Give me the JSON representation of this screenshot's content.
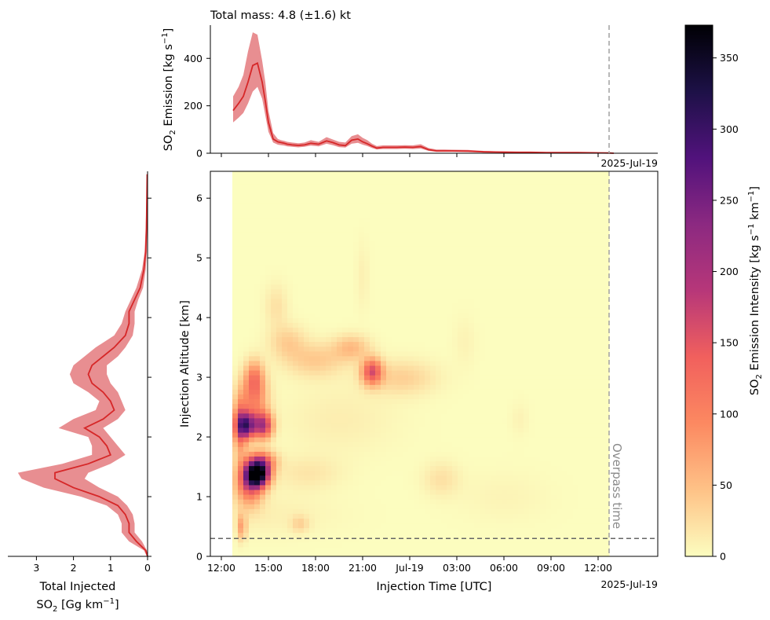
{
  "chart_data": [
    {
      "id": "top_emission",
      "type": "line",
      "title": "Total mass: 4.8 (±1.6) kt",
      "ylabel_main": "SO",
      "ylabel_sub": "2",
      "ylabel_rest": " Emission [kg s",
      "ylabel_sup": "−1",
      "ylabel_end": "]",
      "date_label": "2025-Jul-19",
      "ylim": [
        0,
        540
      ],
      "yticks": [
        "0",
        "200",
        "400"
      ],
      "ytick_values": [
        0,
        200,
        400
      ],
      "line_color": "#d62728",
      "band_color": "#e88e91",
      "x_hours": [
        0.05,
        0.4,
        0.7,
        1.0,
        1.3,
        1.6,
        1.9,
        2.1,
        2.3,
        2.6,
        2.9,
        3.1,
        3.3,
        3.5,
        3.8,
        4.2,
        4.6,
        5.0,
        5.5,
        6.0,
        6.4,
        6.8,
        7.2,
        7.6,
        8.0,
        8.3,
        8.6,
        8.9,
        9.2,
        9.6,
        10.0,
        10.5,
        11.0,
        11.5,
        12.0,
        12.5,
        13.0,
        13.5,
        14.0,
        15.0,
        16.0,
        17.0,
        18.0,
        19.0,
        20.0,
        21.0,
        22.0,
        23.0,
        24.0,
        24.3
      ],
      "values": [
        180,
        210,
        240,
        300,
        370,
        380,
        300,
        220,
        130,
        60,
        48,
        45,
        42,
        38,
        35,
        33,
        35,
        42,
        38,
        52,
        45,
        35,
        32,
        55,
        60,
        48,
        40,
        30,
        22,
        25,
        25,
        25,
        26,
        25,
        28,
        15,
        10,
        10,
        10,
        9,
        6,
        5,
        4,
        4,
        3,
        3,
        3,
        2,
        1,
        0
      ],
      "upper": [
        240,
        280,
        330,
        430,
        510,
        500,
        390,
        300,
        180,
        85,
        60,
        55,
        52,
        48,
        45,
        42,
        45,
        55,
        48,
        68,
        58,
        48,
        45,
        72,
        80,
        65,
        55,
        40,
        30,
        33,
        33,
        33,
        34,
        33,
        38,
        22,
        16,
        16,
        15,
        14,
        10,
        8,
        7,
        6,
        5,
        5,
        4,
        3,
        2,
        0
      ],
      "lower": [
        130,
        150,
        170,
        210,
        260,
        280,
        230,
        160,
        90,
        45,
        36,
        34,
        32,
        29,
        27,
        25,
        27,
        32,
        29,
        40,
        34,
        26,
        24,
        40,
        44,
        36,
        30,
        22,
        16,
        18,
        18,
        18,
        19,
        18,
        20,
        10,
        6,
        6,
        6,
        5,
        3,
        2,
        2,
        2,
        1,
        1,
        1,
        1,
        0,
        0
      ]
    },
    {
      "id": "main_heatmap",
      "type": "heatmap",
      "xlabel": "Injection Time [UTC]",
      "ylabel": "Injection Altitude [km]",
      "date_label": "2025-Jul-19",
      "x_ticks": [
        "12:00",
        "15:00",
        "18:00",
        "21:00",
        "Jul-19",
        "03:00",
        "06:00",
        "09:00",
        "12:00"
      ],
      "x_tick_hours": [
        0,
        3,
        6,
        9,
        12,
        15,
        18,
        21,
        24
      ],
      "xlim_hours": [
        -0.7,
        27.8
      ],
      "data_start_hour": 0.7,
      "overpass_hour": 24.7,
      "overpass_label": "Overpass time",
      "y_ticks": [
        "0",
        "1",
        "2",
        "3",
        "4",
        "5",
        "6"
      ],
      "y_tick_values": [
        0,
        1,
        2,
        3,
        4,
        5,
        6
      ],
      "ylim_km": [
        0,
        6.45
      ],
      "reference_altitude_km": 0.3,
      "blobs": [
        {
          "t": 2.3,
          "z": 1.38,
          "st": 0.5,
          "sz": 0.14,
          "a": 370
        },
        {
          "t": 1.8,
          "z": 1.25,
          "st": 0.6,
          "sz": 0.25,
          "a": 150
        },
        {
          "t": 2.6,
          "z": 1.6,
          "st": 0.6,
          "sz": 0.12,
          "a": 120
        },
        {
          "t": 1.6,
          "z": 2.2,
          "st": 0.45,
          "sz": 0.15,
          "a": 240
        },
        {
          "t": 2.7,
          "z": 2.2,
          "st": 0.4,
          "sz": 0.15,
          "a": 180
        },
        {
          "t": 1.2,
          "z": 2.2,
          "st": 0.3,
          "sz": 0.35,
          "a": 110
        },
        {
          "t": 2.1,
          "z": 2.65,
          "st": 0.6,
          "sz": 0.3,
          "a": 90
        },
        {
          "t": 2.1,
          "z": 3.0,
          "st": 0.4,
          "sz": 0.2,
          "a": 80
        },
        {
          "t": 1.3,
          "z": 0.5,
          "st": 0.2,
          "sz": 0.15,
          "a": 70
        },
        {
          "t": 9.6,
          "z": 3.1,
          "st": 0.45,
          "sz": 0.15,
          "a": 150
        },
        {
          "t": 8.3,
          "z": 3.5,
          "st": 0.8,
          "sz": 0.15,
          "a": 50
        },
        {
          "t": 6.0,
          "z": 3.3,
          "st": 1.3,
          "sz": 0.2,
          "a": 40
        },
        {
          "t": 11.5,
          "z": 3.0,
          "st": 1.5,
          "sz": 0.2,
          "a": 35
        },
        {
          "t": 4.2,
          "z": 3.6,
          "st": 0.8,
          "sz": 0.2,
          "a": 35
        },
        {
          "t": 3.5,
          "z": 4.2,
          "st": 0.5,
          "sz": 0.25,
          "a": 22
        },
        {
          "t": 5.5,
          "z": 1.4,
          "st": 1.5,
          "sz": 0.2,
          "a": 18
        },
        {
          "t": 14.0,
          "z": 1.3,
          "st": 0.8,
          "sz": 0.2,
          "a": 22
        },
        {
          "t": 5.0,
          "z": 0.55,
          "st": 0.4,
          "sz": 0.1,
          "a": 30
        },
        {
          "t": 3.0,
          "z": 0.7,
          "st": 3.0,
          "sz": 0.25,
          "a": 10
        },
        {
          "t": 7.5,
          "z": 2.3,
          "st": 2.5,
          "sz": 0.4,
          "a": 12
        },
        {
          "t": 9.0,
          "z": 4.7,
          "st": 0.3,
          "sz": 0.4,
          "a": 10
        },
        {
          "t": 15.5,
          "z": 3.6,
          "st": 0.5,
          "sz": 0.3,
          "a": 8
        },
        {
          "t": 19.0,
          "z": 2.3,
          "st": 0.4,
          "sz": 0.2,
          "a": 8
        },
        {
          "t": 18.0,
          "z": 1.0,
          "st": 2.0,
          "sz": 0.3,
          "a": 7
        }
      ]
    },
    {
      "id": "left_profile",
      "type": "line",
      "xlabel_line1": "Total Injected",
      "xlabel_line2_main": "SO",
      "xlabel_line2_sub": "2",
      "xlabel_line2_rest": " [Gg km",
      "xlabel_line2_sup": "−1",
      "xlabel_line2_end": "]",
      "xlim": [
        3.6,
        0
      ],
      "xticks": [
        "3",
        "2",
        "1",
        "0"
      ],
      "xtick_values": [
        3,
        2,
        1,
        0
      ],
      "line_color": "#d62728",
      "band_color": "#e88e91",
      "z_km": [
        0.0,
        0.1,
        0.25,
        0.4,
        0.55,
        0.7,
        0.85,
        1.0,
        1.15,
        1.3,
        1.4,
        1.55,
        1.7,
        1.85,
        2.0,
        2.15,
        2.3,
        2.45,
        2.6,
        2.75,
        2.9,
        3.05,
        3.2,
        3.35,
        3.5,
        3.7,
        3.9,
        4.1,
        4.3,
        4.5,
        4.8,
        5.1,
        5.5,
        6.0,
        6.4
      ],
      "values": [
        0.0,
        0.05,
        0.3,
        0.5,
        0.5,
        0.6,
        0.8,
        1.3,
        2.0,
        2.5,
        2.5,
        1.6,
        1.0,
        1.1,
        1.3,
        1.7,
        1.2,
        0.9,
        1.0,
        1.2,
        1.5,
        1.6,
        1.5,
        1.2,
        0.9,
        0.6,
        0.5,
        0.5,
        0.35,
        0.2,
        0.1,
        0.05,
        0.03,
        0.02,
        0.01
      ],
      "upper": [
        0.02,
        0.1,
        0.5,
        0.7,
        0.7,
        0.8,
        1.1,
        1.8,
        2.8,
        3.4,
        3.5,
        2.3,
        1.5,
        1.5,
        1.6,
        2.4,
        2.0,
        1.4,
        1.3,
        1.6,
        2.0,
        2.1,
        2.0,
        1.7,
        1.4,
        0.9,
        0.7,
        0.6,
        0.45,
        0.3,
        0.15,
        0.08,
        0.05,
        0.03,
        0.02
      ],
      "lower": [
        0.0,
        0.02,
        0.15,
        0.35,
        0.35,
        0.4,
        0.55,
        0.8,
        1.3,
        1.7,
        1.6,
        1.0,
        0.6,
        0.8,
        1.0,
        1.2,
        0.8,
        0.6,
        0.7,
        0.8,
        1.0,
        1.1,
        1.1,
        0.8,
        0.6,
        0.4,
        0.35,
        0.35,
        0.25,
        0.12,
        0.05,
        0.02,
        0.01,
        0.01,
        0.0
      ]
    },
    {
      "id": "colorbar",
      "type": "colorbar",
      "label_main": "SO",
      "label_sub": "2",
      "label_rest": " Emission Intensity [kg s",
      "label_sup1": "−1",
      "label_mid": " km",
      "label_sup2": "−1",
      "label_end": "]",
      "range": [
        0,
        373
      ],
      "ticks": [
        "0",
        "50",
        "100",
        "150",
        "200",
        "250",
        "300",
        "350"
      ],
      "tick_values": [
        0,
        50,
        100,
        150,
        200,
        250,
        300,
        350
      ],
      "colormap": "magma_r"
    }
  ]
}
